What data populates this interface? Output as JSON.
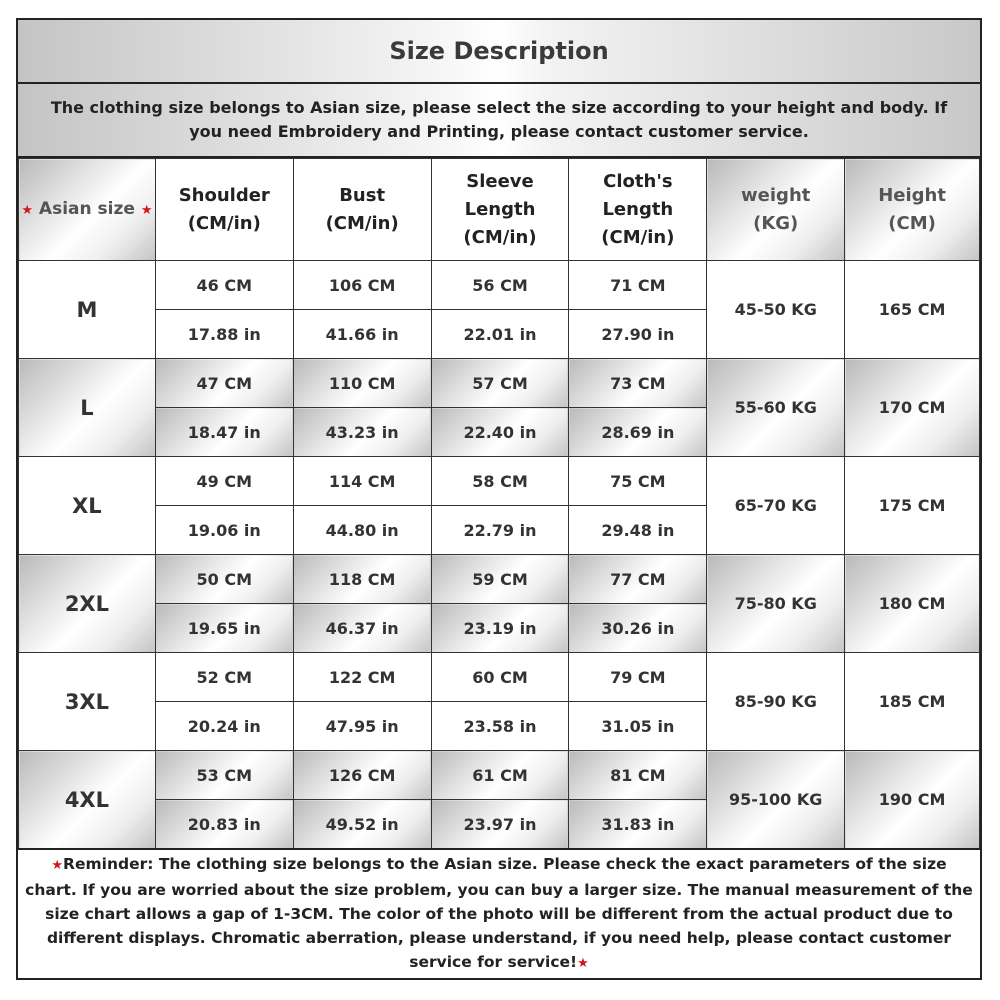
{
  "title": "Size Description",
  "intro": "The clothing size belongs to Asian size, please select the size according to your height and body. If you need Embroidery and Printing, please contact customer service.",
  "header": {
    "asian_size": "Asian size",
    "star": "★",
    "shoulder": [
      "Shoulder",
      "(CM/in)"
    ],
    "bust": [
      "Bust",
      "(CM/in)"
    ],
    "sleeve": [
      "Sleeve",
      "Length",
      "(CM/in)"
    ],
    "cloth": [
      "Cloth's",
      "Length",
      "(CM/in)"
    ],
    "weight": [
      "weight",
      "(KG)"
    ],
    "height": [
      "Height",
      "(CM)"
    ]
  },
  "rows": [
    {
      "size": "M",
      "cm": [
        "46 CM",
        "106 CM",
        "56 CM",
        "71 CM"
      ],
      "in": [
        "17.88 in",
        "41.66 in",
        "22.01 in",
        "27.90 in"
      ],
      "weight": "45-50 KG",
      "height": "165 CM"
    },
    {
      "size": "L",
      "cm": [
        "47 CM",
        "110 CM",
        "57 CM",
        "73 CM"
      ],
      "in": [
        "18.47 in",
        "43.23 in",
        "22.40 in",
        "28.69 in"
      ],
      "weight": "55-60 KG",
      "height": "170 CM"
    },
    {
      "size": "XL",
      "cm": [
        "49 CM",
        "114 CM",
        "58 CM",
        "75 CM"
      ],
      "in": [
        "19.06 in",
        "44.80 in",
        "22.79 in",
        "29.48 in"
      ],
      "weight": "65-70 KG",
      "height": "175 CM"
    },
    {
      "size": "2XL",
      "cm": [
        "50 CM",
        "118 CM",
        "59 CM",
        "77 CM"
      ],
      "in": [
        "19.65 in",
        "46.37 in",
        "23.19 in",
        "30.26 in"
      ],
      "weight": "75-80 KG",
      "height": "180 CM"
    },
    {
      "size": "3XL",
      "cm": [
        "52 CM",
        "122 CM",
        "60 CM",
        "79 CM"
      ],
      "in": [
        "20.24 in",
        "47.95 in",
        "23.58 in",
        "31.05 in"
      ],
      "weight": "85-90 KG",
      "height": "185 CM"
    },
    {
      "size": "4XL",
      "cm": [
        "53 CM",
        "126 CM",
        "61 CM",
        "81 CM"
      ],
      "in": [
        "20.83 in",
        "49.52 in",
        "23.97 in",
        "31.83 in"
      ],
      "weight": "95-100 KG",
      "height": "190 CM"
    }
  ],
  "reminder": "Reminder: The clothing size belongs to the Asian size. Please check the exact parameters of the size chart. If you are worried about the size problem, you can buy a larger size. The manual measurement of the size chart allows a gap of 1-3CM. The color of the photo will be different from the actual product due to different displays. Chromatic aberration, please understand, if you need help, please contact customer service for service!",
  "colors": {
    "star": "#d01818",
    "border": "#222222"
  }
}
